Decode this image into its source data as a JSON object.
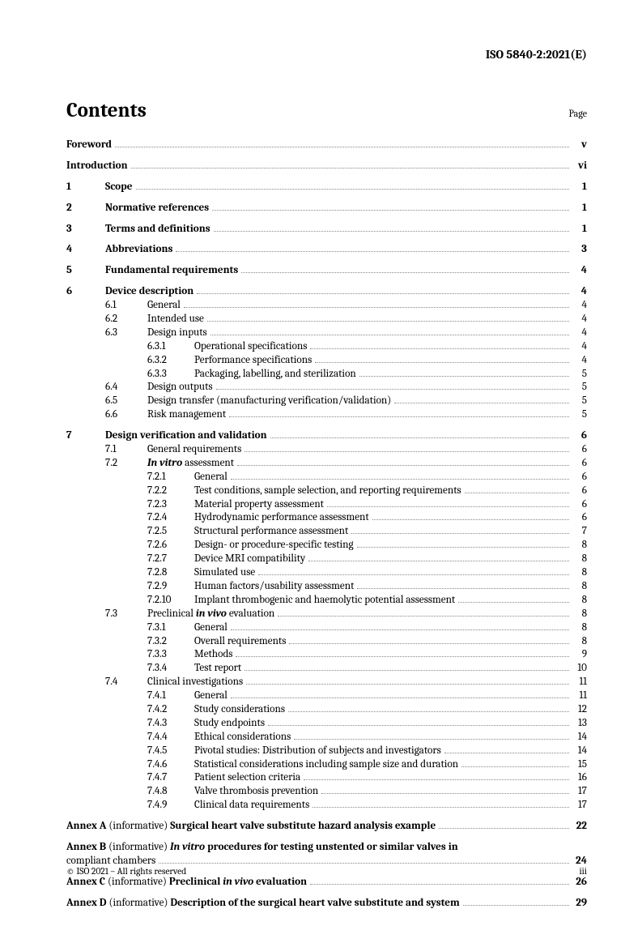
{
  "docId": "ISO 5840-2:2021(E)",
  "title": "Contents",
  "pageLabel": "Page",
  "footerLeft": "© ISO 2021 – All rights reserved",
  "footerRight": "iii",
  "entries": [
    {
      "level": 0,
      "type": "pre",
      "num": "",
      "label": "Foreword",
      "page": "v",
      "top": true
    },
    {
      "level": 0,
      "type": "pre",
      "num": "",
      "label": "Introduction",
      "page": "vi",
      "top": true
    },
    {
      "level": 1,
      "num": "1",
      "label": "Scope",
      "page": "1",
      "top": true,
      "bold": true
    },
    {
      "level": 1,
      "num": "2",
      "label": "Normative references",
      "page": "1",
      "top": true,
      "bold": true
    },
    {
      "level": 1,
      "num": "3",
      "label": "Terms and definitions",
      "page": "1",
      "top": true,
      "bold": true
    },
    {
      "level": 1,
      "num": "4",
      "label": "Abbreviations",
      "page": "3",
      "top": true,
      "bold": true
    },
    {
      "level": 1,
      "num": "5",
      "label": "Fundamental requirements",
      "page": "4",
      "top": true,
      "bold": true
    },
    {
      "level": 1,
      "num": "6",
      "label": "Device description",
      "page": "4",
      "top": true,
      "bold": true
    },
    {
      "level": 2,
      "num": "6.1",
      "label": "General",
      "page": "4"
    },
    {
      "level": 2,
      "num": "6.2",
      "label": "Intended use",
      "page": "4"
    },
    {
      "level": 2,
      "num": "6.3",
      "label": "Design inputs",
      "page": "4"
    },
    {
      "level": 3,
      "num": "6.3.1",
      "label": "Operational specifications",
      "page": "4"
    },
    {
      "level": 3,
      "num": "6.3.2",
      "label": "Performance specifications",
      "page": "4"
    },
    {
      "level": 3,
      "num": "6.3.3",
      "label": "Packaging, labelling, and sterilization",
      "page": "5"
    },
    {
      "level": 2,
      "num": "6.4",
      "label": "Design outputs",
      "page": "5"
    },
    {
      "level": 2,
      "num": "6.5",
      "label": "Design transfer (manufacturing verification/validation)",
      "page": "5"
    },
    {
      "level": 2,
      "num": "6.6",
      "label": "Risk management",
      "page": "5"
    },
    {
      "level": 1,
      "num": "7",
      "label": "Design verification and validation",
      "page": "6",
      "top": true,
      "bold": true
    },
    {
      "level": 2,
      "num": "7.1",
      "label": "General requirements",
      "page": "6"
    },
    {
      "level": 2,
      "num": "7.2",
      "html": "<span class='italic'><b>In vitro</b></span> assessment",
      "page": "6"
    },
    {
      "level": 3,
      "num": "7.2.1",
      "label": "General",
      "page": "6"
    },
    {
      "level": 3,
      "num": "7.2.2",
      "label": "Test conditions, sample selection, and reporting requirements",
      "page": "6"
    },
    {
      "level": 3,
      "num": "7.2.3",
      "label": "Material property assessment",
      "page": "6"
    },
    {
      "level": 3,
      "num": "7.2.4",
      "label": "Hydrodynamic performance assessment",
      "page": "6"
    },
    {
      "level": 3,
      "num": "7.2.5",
      "label": "Structural performance assessment",
      "page": "7"
    },
    {
      "level": 3,
      "num": "7.2.6",
      "label": "Design- or procedure-specific testing",
      "page": "8"
    },
    {
      "level": 3,
      "num": "7.2.7",
      "label": "Device MRI compatibility",
      "page": "8"
    },
    {
      "level": 3,
      "num": "7.2.8",
      "label": "Simulated use",
      "page": "8"
    },
    {
      "level": 3,
      "num": "7.2.9",
      "label": "Human factors/usability assessment",
      "page": "8"
    },
    {
      "level": 3,
      "num": "7.2.10",
      "label": "Implant thrombogenic and haemolytic potential assessment",
      "page": "8"
    },
    {
      "level": 2,
      "num": "7.3",
      "html": "Preclinical <span class='italic'><b>in vivo</b></span> evaluation",
      "page": "8"
    },
    {
      "level": 3,
      "num": "7.3.1",
      "label": "General",
      "page": "8"
    },
    {
      "level": 3,
      "num": "7.3.2",
      "label": "Overall requirements",
      "page": "8"
    },
    {
      "level": 3,
      "num": "7.3.3",
      "label": "Methods",
      "page": "9"
    },
    {
      "level": 3,
      "num": "7.3.4",
      "label": "Test report",
      "page": "10"
    },
    {
      "level": 2,
      "num": "7.4",
      "label": "Clinical investigations",
      "page": "11"
    },
    {
      "level": 3,
      "num": "7.4.1",
      "label": "General",
      "page": "11"
    },
    {
      "level": 3,
      "num": "7.4.2",
      "label": "Study considerations",
      "page": "12"
    },
    {
      "level": 3,
      "num": "7.4.3",
      "label": "Study endpoints",
      "page": "13"
    },
    {
      "level": 3,
      "num": "7.4.4",
      "label": "Ethical considerations",
      "page": "14"
    },
    {
      "level": 3,
      "num": "7.4.5",
      "label": "Pivotal studies: Distribution of subjects and investigators",
      "page": "14"
    },
    {
      "level": 3,
      "num": "7.4.6",
      "label": "Statistical considerations including sample size and duration",
      "page": "15"
    },
    {
      "level": 3,
      "num": "7.4.7",
      "label": "Patient selection criteria",
      "page": "16"
    },
    {
      "level": 3,
      "num": "7.4.8",
      "label": "Valve thrombosis prevention",
      "page": "17"
    },
    {
      "level": 3,
      "num": "7.4.9",
      "label": "Clinical data requirements",
      "page": "17"
    },
    {
      "level": 0,
      "type": "annex",
      "num": "",
      "html": "<b>Annex A</b> (informative) <b>Surgical heart valve substitute hazard analysis example</b>",
      "page": "22",
      "top": true
    },
    {
      "level": 0,
      "type": "annex",
      "num": "",
      "html": "<b>Annex B</b> (informative) <b><span class='italic'>In vitro</span> procedures for testing unstented or similar valves in<br>compliant chambers</b>",
      "page": "24",
      "top": true,
      "wrap": true
    },
    {
      "level": 0,
      "type": "annex",
      "num": "",
      "html": "<b>Annex C</b> (informative) <b>Preclinical <span class='italic'>in vivo</span> evaluation</b>",
      "page": "26",
      "top": true
    },
    {
      "level": 0,
      "type": "annex",
      "num": "",
      "html": "<b>Annex D</b> (informative) <b>Description of the surgical heart valve substitute and system</b>",
      "page": "29",
      "top": true
    }
  ]
}
